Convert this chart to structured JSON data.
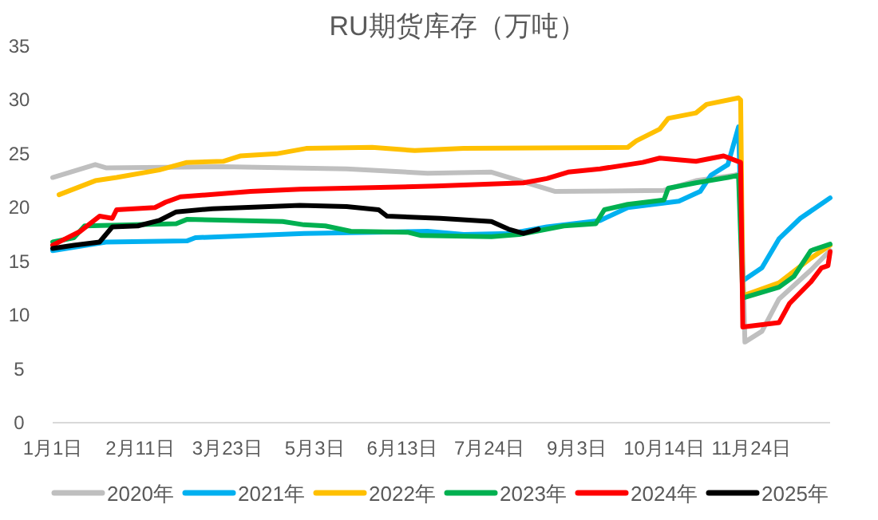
{
  "chart_data": {
    "type": "line",
    "title": "RU期货库存（万吨）",
    "legend": "bottom",
    "xlim": [
      "--01-01",
      "--12-31"
    ],
    "xticks": [
      {
        "value": "--01-01",
        "label": "1月1日"
      },
      {
        "value": "--02-11",
        "label": "2月11日"
      },
      {
        "value": "--03-23",
        "label": "3月23日"
      },
      {
        "value": "--05-03",
        "label": "5月3日"
      },
      {
        "value": "--06-13",
        "label": "6月13日"
      },
      {
        "value": "--07-24",
        "label": "7月24日"
      },
      {
        "value": "--09-03",
        "label": "9月3日"
      },
      {
        "value": "--10-14",
        "label": "10月14日"
      },
      {
        "value": "--11-24",
        "label": "11月24日"
      }
    ],
    "ylim": [
      0,
      35
    ],
    "yticks": [
      0,
      5,
      10,
      15,
      20,
      25,
      30,
      35
    ],
    "series": [
      {
        "name": "2020年",
        "color": "#bfbfbf",
        "x": [
          "--01-01",
          "--01-21",
          "--01-26",
          "--03-21",
          "--05-18",
          "--06-25",
          "--07-25",
          "--08-24",
          "--10-14",
          "--10-29",
          "--11-16",
          "--11-19",
          "--11-21",
          "--11-29",
          "--12-07",
          "--12-22",
          "--12-31"
        ],
        "values": [
          22.8,
          24.0,
          23.7,
          23.8,
          23.6,
          23.2,
          23.3,
          21.5,
          21.6,
          22.5,
          23.0,
          23.2,
          7.5,
          8.5,
          11.5,
          14.2,
          16.0
        ]
      },
      {
        "name": "2021年",
        "color": "#00b0f0",
        "x": [
          "--01-01",
          "--01-26",
          "--03-04",
          "--03-08",
          "--04-28",
          "--06-25",
          "--07-12",
          "--08-03",
          "--08-20",
          "--09-14",
          "--09-27",
          "--10-21",
          "--10-31",
          "--11-05",
          "--11-13",
          "--11-18",
          "--11-20",
          "--11-29",
          "--12-07",
          "--12-17",
          "--12-31"
        ],
        "values": [
          16.0,
          16.8,
          16.9,
          17.2,
          17.6,
          17.8,
          17.5,
          17.6,
          18.2,
          18.8,
          20.0,
          20.6,
          21.5,
          23.0,
          24.0,
          27.5,
          13.2,
          14.4,
          17.1,
          19.0,
          20.9
        ]
      },
      {
        "name": "2022年",
        "color": "#ffc000",
        "x": [
          "--01-04",
          "--01-21",
          "--01-31",
          "--02-20",
          "--03-04",
          "--03-21",
          "--03-29",
          "--04-15",
          "--04-29",
          "--05-30",
          "--06-19",
          "--07-12",
          "--09-27",
          "--10-01",
          "--10-12",
          "--10-16",
          "--10-29",
          "--11-03",
          "--11-18",
          "--11-19",
          "--11-20",
          "--12-07",
          "--12-22",
          "--12-31"
        ],
        "values": [
          21.2,
          22.5,
          22.8,
          23.5,
          24.2,
          24.3,
          24.8,
          25.0,
          25.5,
          25.6,
          25.3,
          25.5,
          25.6,
          26.2,
          27.3,
          28.3,
          28.8,
          29.6,
          30.2,
          30.0,
          11.8,
          13.0,
          15.3,
          16.5
        ]
      },
      {
        "name": "2023年",
        "color": "#00b050",
        "x": [
          "--01-01",
          "--01-11",
          "--01-16",
          "--02-28",
          "--03-04",
          "--04-18",
          "--04-28",
          "--05-08",
          "--05-20",
          "--06-16",
          "--06-22",
          "--07-25",
          "--08-07",
          "--08-28",
          "--09-12",
          "--09-16",
          "--09-27",
          "--10-14",
          "--10-16",
          "--10-29",
          "--11-13",
          "--11-18",
          "--11-20",
          "--12-07",
          "--12-14",
          "--12-22",
          "--12-31"
        ],
        "values": [
          16.8,
          17.2,
          18.3,
          18.5,
          18.9,
          18.7,
          18.4,
          18.3,
          17.8,
          17.7,
          17.4,
          17.3,
          17.5,
          18.3,
          18.5,
          19.8,
          20.3,
          20.7,
          21.8,
          22.3,
          22.8,
          23.0,
          11.6,
          12.6,
          13.6,
          16.0,
          16.6
        ]
      },
      {
        "name": "2024年",
        "color": "#ff0000",
        "x": [
          "--01-01",
          "--01-04",
          "--01-14",
          "--01-23",
          "--01-29",
          "--01-31",
          "--02-18",
          "--02-23",
          "--03-01",
          "--04-03",
          "--04-26",
          "--06-29",
          "--08-09",
          "--08-20",
          "--08-30",
          "--09-14",
          "--10-04",
          "--10-12",
          "--10-29",
          "--11-11",
          "--11-19",
          "--11-20",
          "--12-07",
          "--12-12",
          "--12-22",
          "--12-27",
          "--12-30",
          "--12-31"
        ],
        "values": [
          16.5,
          16.8,
          17.8,
          19.2,
          19.0,
          19.8,
          20.0,
          20.5,
          21.0,
          21.5,
          21.7,
          22.0,
          22.3,
          22.7,
          23.3,
          23.6,
          24.2,
          24.6,
          24.3,
          24.8,
          24.2,
          8.9,
          9.3,
          11.1,
          13.1,
          14.4,
          14.6,
          15.9
        ]
      },
      {
        "name": "2025年",
        "color": "#000000",
        "x": [
          "--01-01",
          "--01-11",
          "--01-23",
          "--01-29",
          "--02-10",
          "--02-20",
          "--02-28",
          "--03-16",
          "--04-26",
          "--05-18",
          "--06-02",
          "--06-06",
          "--07-01",
          "--07-25",
          "--08-02",
          "--08-09",
          "--08-16"
        ],
        "values": [
          16.2,
          16.5,
          16.8,
          18.2,
          18.3,
          18.8,
          19.6,
          19.9,
          20.2,
          20.1,
          19.8,
          19.2,
          19.0,
          18.7,
          18.0,
          17.6,
          18.0
        ]
      }
    ]
  }
}
